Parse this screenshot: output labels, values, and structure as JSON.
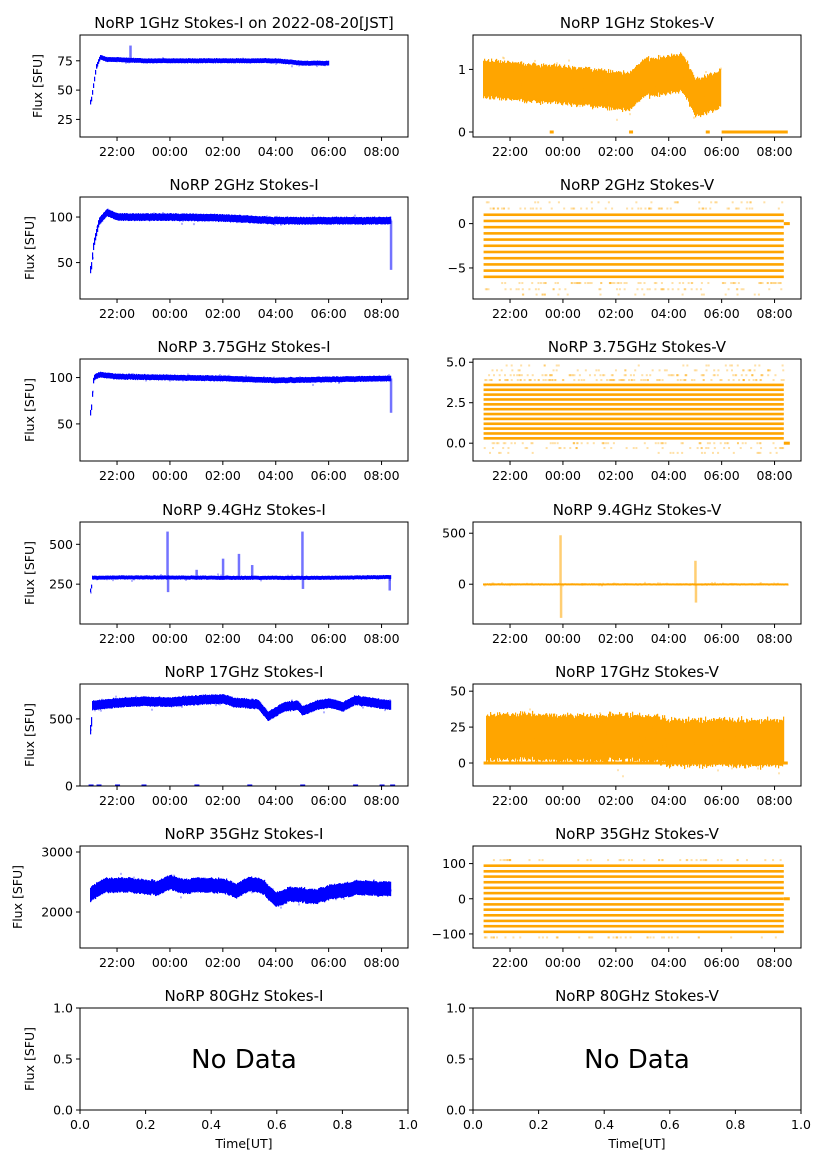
{
  "colors": {
    "stokes_i": "#0000ff",
    "stokes_v": "#ffa500"
  },
  "chart_data": [
    {
      "type": "scatter",
      "title": "NoRP 1GHz Stokes-I on 2022-08-20[JST]",
      "ylabel": "Flux [SFU]",
      "xlabel": "",
      "xticks": [
        "22:00",
        "00:00",
        "02:00",
        "04:00",
        "06:00",
        "08:00"
      ],
      "xlim": [
        20.6,
        33.0
      ],
      "ylim": [
        10,
        97
      ],
      "yticks": [
        25,
        50,
        75
      ],
      "ytick_labels": [
        "25",
        "50",
        "75"
      ],
      "series": "I",
      "x_range": [
        21.0,
        30.0
      ],
      "profile": [
        [
          21.0,
          40
        ],
        [
          21.1,
          55
        ],
        [
          21.2,
          70
        ],
        [
          21.35,
          78
        ],
        [
          21.6,
          76
        ],
        [
          22.0,
          76
        ],
        [
          23.0,
          75
        ],
        [
          24.0,
          75
        ],
        [
          26.0,
          75
        ],
        [
          28.0,
          75
        ],
        [
          29.0,
          73
        ],
        [
          30.0,
          73
        ]
      ],
      "spread": 2,
      "spikes": [
        [
          22.5,
          88
        ]
      ]
    },
    {
      "type": "scatter",
      "title": "NoRP 1GHz Stokes-V",
      "ylabel": "",
      "xlabel": "",
      "xticks": [
        "22:00",
        "00:00",
        "02:00",
        "04:00",
        "06:00",
        "08:00"
      ],
      "xlim": [
        20.6,
        33.0
      ],
      "ylim": [
        -0.08,
        1.55
      ],
      "yticks": [
        0,
        1
      ],
      "ytick_labels": [
        "0",
        "1"
      ],
      "series": "V",
      "x_range": [
        21.0,
        29.95
      ],
      "profile": [
        [
          21.0,
          0.85
        ],
        [
          22.5,
          0.8
        ],
        [
          24.0,
          0.75
        ],
        [
          26.5,
          0.65
        ],
        [
          27.0,
          0.85
        ],
        [
          28.5,
          0.95
        ],
        [
          29.0,
          0.55
        ],
        [
          29.5,
          0.6
        ],
        [
          29.95,
          0.7
        ]
      ],
      "spread": 0.3,
      "flat_segments": [
        [
          23.5,
          23.6,
          0
        ],
        [
          26.5,
          26.6,
          0
        ],
        [
          29.4,
          29.5,
          0
        ],
        [
          30.0,
          32.5,
          0
        ]
      ]
    },
    {
      "type": "scatter",
      "title": "NoRP 2GHz Stokes-I",
      "ylabel": "Flux [SFU]",
      "xlabel": "",
      "xticks": [
        "22:00",
        "00:00",
        "02:00",
        "04:00",
        "06:00",
        "08:00"
      ],
      "xlim": [
        20.6,
        33.0
      ],
      "ylim": [
        10,
        122
      ],
      "yticks": [
        50,
        100
      ],
      "ytick_labels": [
        "50",
        "100"
      ],
      "series": "I",
      "x_range": [
        21.0,
        32.35
      ],
      "profile": [
        [
          21.0,
          42
        ],
        [
          21.1,
          70
        ],
        [
          21.3,
          95
        ],
        [
          21.6,
          105
        ],
        [
          22.0,
          100
        ],
        [
          24.0,
          100
        ],
        [
          26.0,
          99
        ],
        [
          28.0,
          96
        ],
        [
          30.0,
          96
        ],
        [
          32.35,
          96
        ]
      ],
      "spread": 4,
      "spikes": [
        [
          32.35,
          42
        ]
      ]
    },
    {
      "type": "scatter",
      "title": "NoRP 2GHz Stokes-V",
      "ylabel": "",
      "xlabel": "",
      "xticks": [
        "22:00",
        "00:00",
        "02:00",
        "04:00",
        "06:00",
        "08:00"
      ],
      "xlim": [
        20.6,
        33.0
      ],
      "ylim": [
        -8.5,
        3
      ],
      "yticks": [
        -5,
        0
      ],
      "ytick_labels": [
        "−5",
        "0"
      ],
      "series": "V",
      "x_range": [
        21.0,
        32.35
      ],
      "levels": [
        -8,
        -7.4,
        -6.7,
        -6,
        -5.3,
        -4.6,
        -3.9,
        -3.2,
        -2.5,
        -1.8,
        -1.1,
        -0.4,
        0.3,
        1,
        1.7,
        2.4
      ],
      "level_strength": [
        0.1,
        0.3,
        0.55,
        0.85,
        1,
        1,
        1,
        1,
        1,
        1,
        1,
        1,
        1,
        0.85,
        0.4,
        0.15
      ]
    },
    {
      "type": "scatter",
      "title": "NoRP 3.75GHz Stokes-I",
      "ylabel": "Flux [SFU]",
      "xlabel": "",
      "xticks": [
        "22:00",
        "00:00",
        "02:00",
        "04:00",
        "06:00",
        "08:00"
      ],
      "xlim": [
        20.6,
        33.0
      ],
      "ylim": [
        10,
        120
      ],
      "yticks": [
        50,
        100
      ],
      "ytick_labels": [
        "50",
        "100"
      ],
      "series": "I",
      "x_range": [
        21.0,
        32.35
      ],
      "profile": [
        [
          21.0,
          62
        ],
        [
          21.1,
          100
        ],
        [
          21.3,
          103
        ],
        [
          22.0,
          101
        ],
        [
          24.0,
          100
        ],
        [
          26.0,
          99
        ],
        [
          28.0,
          97
        ],
        [
          30.0,
          98
        ],
        [
          32.35,
          99
        ]
      ],
      "spread": 3,
      "spikes": [
        [
          32.35,
          62
        ]
      ]
    },
    {
      "type": "scatter",
      "title": "NoRP 3.75GHz Stokes-V",
      "ylabel": "",
      "xlabel": "",
      "xticks": [
        "22:00",
        "00:00",
        "02:00",
        "04:00",
        "06:00",
        "08:00"
      ],
      "xlim": [
        20.6,
        33.0
      ],
      "ylim": [
        -1.1,
        5.2
      ],
      "yticks": [
        0,
        2.5,
        5
      ],
      "ytick_labels": [
        "0.0",
        "2.5",
        "5.0"
      ],
      "series": "V",
      "x_range": [
        21.0,
        32.35
      ],
      "levels": [
        -0.6,
        -0.3,
        0,
        0.3,
        0.6,
        0.9,
        1.2,
        1.5,
        1.8,
        2.1,
        2.4,
        2.7,
        3.0,
        3.3,
        3.6,
        3.9,
        4.2,
        4.5,
        4.8
      ],
      "level_strength": [
        0.1,
        0.25,
        0.4,
        1,
        1,
        1,
        1,
        1,
        1,
        1,
        1,
        1,
        1,
        1,
        0.9,
        0.7,
        0.5,
        0.25,
        0.1
      ]
    },
    {
      "type": "scatter",
      "title": "NoRP 9.4GHz Stokes-I",
      "ylabel": "Flux [SFU]",
      "xlabel": "",
      "xticks": [
        "22:00",
        "00:00",
        "02:00",
        "04:00",
        "06:00",
        "08:00"
      ],
      "xlim": [
        20.6,
        33.0
      ],
      "ylim": [
        0,
        640
      ],
      "yticks": [
        250,
        500
      ],
      "ytick_labels": [
        "250",
        "500"
      ],
      "series": "I",
      "x_range": [
        21.0,
        32.35
      ],
      "profile": [
        [
          21.0,
          210
        ],
        [
          21.05,
          290
        ],
        [
          22.0,
          292
        ],
        [
          24.0,
          292
        ],
        [
          26.0,
          290
        ],
        [
          28.0,
          290
        ],
        [
          30.0,
          290
        ],
        [
          32.35,
          295
        ]
      ],
      "spread": 12,
      "spikes": [
        [
          23.9,
          580
        ],
        [
          23.92,
          200
        ],
        [
          25.0,
          340
        ],
        [
          26.0,
          410
        ],
        [
          26.6,
          440
        ],
        [
          27.1,
          370
        ],
        [
          29.0,
          580
        ],
        [
          29.02,
          220
        ],
        [
          32.3,
          210
        ]
      ]
    },
    {
      "type": "scatter",
      "title": "NoRP 9.4GHz Stokes-V",
      "ylabel": "",
      "xlabel": "",
      "xticks": [
        "22:00",
        "00:00",
        "02:00",
        "04:00",
        "06:00",
        "08:00"
      ],
      "xlim": [
        20.6,
        33.0
      ],
      "ylim": [
        -390,
        610
      ],
      "yticks": [
        0,
        500
      ],
      "ytick_labels": [
        "0",
        "500"
      ],
      "series": "V",
      "x_range": [
        21.0,
        32.5
      ],
      "profile": [
        [
          21.0,
          0
        ],
        [
          32.5,
          0
        ]
      ],
      "spread": 8,
      "spikes": [
        [
          23.9,
          480
        ],
        [
          23.92,
          -330
        ],
        [
          29.0,
          230
        ],
        [
          29.02,
          -180
        ]
      ]
    },
    {
      "type": "scatter",
      "title": "NoRP 17GHz Stokes-I",
      "ylabel": "Flux [SFU]",
      "xlabel": "",
      "xticks": [
        "22:00",
        "00:00",
        "02:00",
        "04:00",
        "06:00",
        "08:00"
      ],
      "xlim": [
        20.6,
        33.0
      ],
      "ylim": [
        0,
        760
      ],
      "yticks": [
        0,
        500
      ],
      "ytick_labels": [
        "0",
        "500"
      ],
      "series": "I",
      "x_range": [
        21.0,
        32.35
      ],
      "profile": [
        [
          21.0,
          420
        ],
        [
          21.05,
          600
        ],
        [
          22.0,
          620
        ],
        [
          23.0,
          630
        ],
        [
          24.0,
          625
        ],
        [
          25.0,
          640
        ],
        [
          26.0,
          650
        ],
        [
          26.5,
          620
        ],
        [
          27.3,
          610
        ],
        [
          27.7,
          520
        ],
        [
          28.3,
          590
        ],
        [
          28.8,
          600
        ],
        [
          29.0,
          560
        ],
        [
          29.5,
          600
        ],
        [
          30.0,
          620
        ],
        [
          30.5,
          590
        ],
        [
          31.0,
          640
        ],
        [
          32.35,
          600
        ]
      ],
      "spread": 35,
      "zero_marks": [
        21.0,
        21.3,
        22.0,
        23.0,
        25.0,
        27.0,
        29.0,
        31.0,
        32.0,
        32.4
      ]
    },
    {
      "type": "scatter",
      "title": "NoRP 17GHz Stokes-V",
      "ylabel": "",
      "xlabel": "",
      "xticks": [
        "22:00",
        "00:00",
        "02:00",
        "04:00",
        "06:00",
        "08:00"
      ],
      "xlim": [
        20.6,
        33.0
      ],
      "ylim": [
        -16,
        55
      ],
      "yticks": [
        0,
        25,
        50
      ],
      "ytick_labels": [
        "0",
        "25",
        "50"
      ],
      "series": "V",
      "x_range": [
        21.1,
        32.35
      ],
      "profile": [
        [
          21.1,
          18
        ],
        [
          27.5,
          17
        ],
        [
          28.0,
          14
        ],
        [
          32.35,
          14
        ]
      ],
      "spread": 16,
      "flat_segments": [
        [
          21.0,
          32.5,
          0
        ]
      ]
    },
    {
      "type": "scatter",
      "title": "NoRP 35GHz Stokes-I",
      "ylabel": "Flux [SFU]",
      "xlabel": "",
      "xticks": [
        "22:00",
        "00:00",
        "02:00",
        "04:00",
        "06:00",
        "08:00"
      ],
      "xlim": [
        20.6,
        33.0
      ],
      "ylim": [
        1400,
        3100
      ],
      "yticks": [
        2000,
        3000
      ],
      "ytick_labels": [
        "2000",
        "3000"
      ],
      "series": "I",
      "x_range": [
        21.0,
        32.35
      ],
      "profile": [
        [
          21.0,
          2300
        ],
        [
          21.5,
          2450
        ],
        [
          22.5,
          2450
        ],
        [
          23.5,
          2400
        ],
        [
          24.0,
          2500
        ],
        [
          24.5,
          2420
        ],
        [
          25.0,
          2450
        ],
        [
          26.0,
          2440
        ],
        [
          26.5,
          2350
        ],
        [
          27.0,
          2470
        ],
        [
          27.5,
          2420
        ],
        [
          28.0,
          2200
        ],
        [
          28.5,
          2300
        ],
        [
          29.0,
          2280
        ],
        [
          29.5,
          2250
        ],
        [
          30.0,
          2330
        ],
        [
          31.0,
          2400
        ],
        [
          32.35,
          2390
        ]
      ],
      "spread": 120
    },
    {
      "type": "scatter",
      "title": "NoRP 35GHz Stokes-V",
      "ylabel": "",
      "xlabel": "",
      "xticks": [
        "22:00",
        "00:00",
        "02:00",
        "04:00",
        "06:00",
        "08:00"
      ],
      "xlim": [
        20.6,
        33.0
      ],
      "ylim": [
        -140,
        150
      ],
      "yticks": [
        -100,
        0,
        100
      ],
      "ytick_labels": [
        "−100",
        "0",
        "100"
      ],
      "series": "V",
      "x_range": [
        21.0,
        32.35
      ],
      "levels": [
        -110,
        -94,
        -78,
        -63,
        -47,
        -31,
        -16,
        0,
        16,
        31,
        47,
        63,
        78,
        94,
        110
      ],
      "level_strength": [
        0.3,
        1,
        1,
        1,
        1,
        1,
        1,
        1,
        1,
        1,
        1,
        1,
        1,
        1,
        0.3
      ]
    },
    {
      "type": "empty",
      "title": "NoRP 80GHz Stokes-I",
      "ylabel": "Flux [SFU]",
      "xlabel": "Time[UT]",
      "annotation": "No Data",
      "xlim": [
        0,
        1
      ],
      "ylim": [
        0,
        1
      ],
      "xticks": [
        "0.0",
        "0.2",
        "0.4",
        "0.6",
        "0.8",
        "1.0"
      ],
      "yticks": [
        0,
        0.5,
        1
      ],
      "ytick_labels": [
        "0.0",
        "0.5",
        "1.0"
      ]
    },
    {
      "type": "empty",
      "title": "NoRP 80GHz Stokes-V",
      "ylabel": "",
      "xlabel": "Time[UT]",
      "annotation": "No Data",
      "xlim": [
        0,
        1
      ],
      "ylim": [
        0,
        1
      ],
      "xticks": [
        "0.0",
        "0.2",
        "0.4",
        "0.6",
        "0.8",
        "1.0"
      ],
      "yticks": [
        0,
        0.5,
        1
      ],
      "ytick_labels": [
        "0.0",
        "0.5",
        "1.0"
      ]
    }
  ]
}
